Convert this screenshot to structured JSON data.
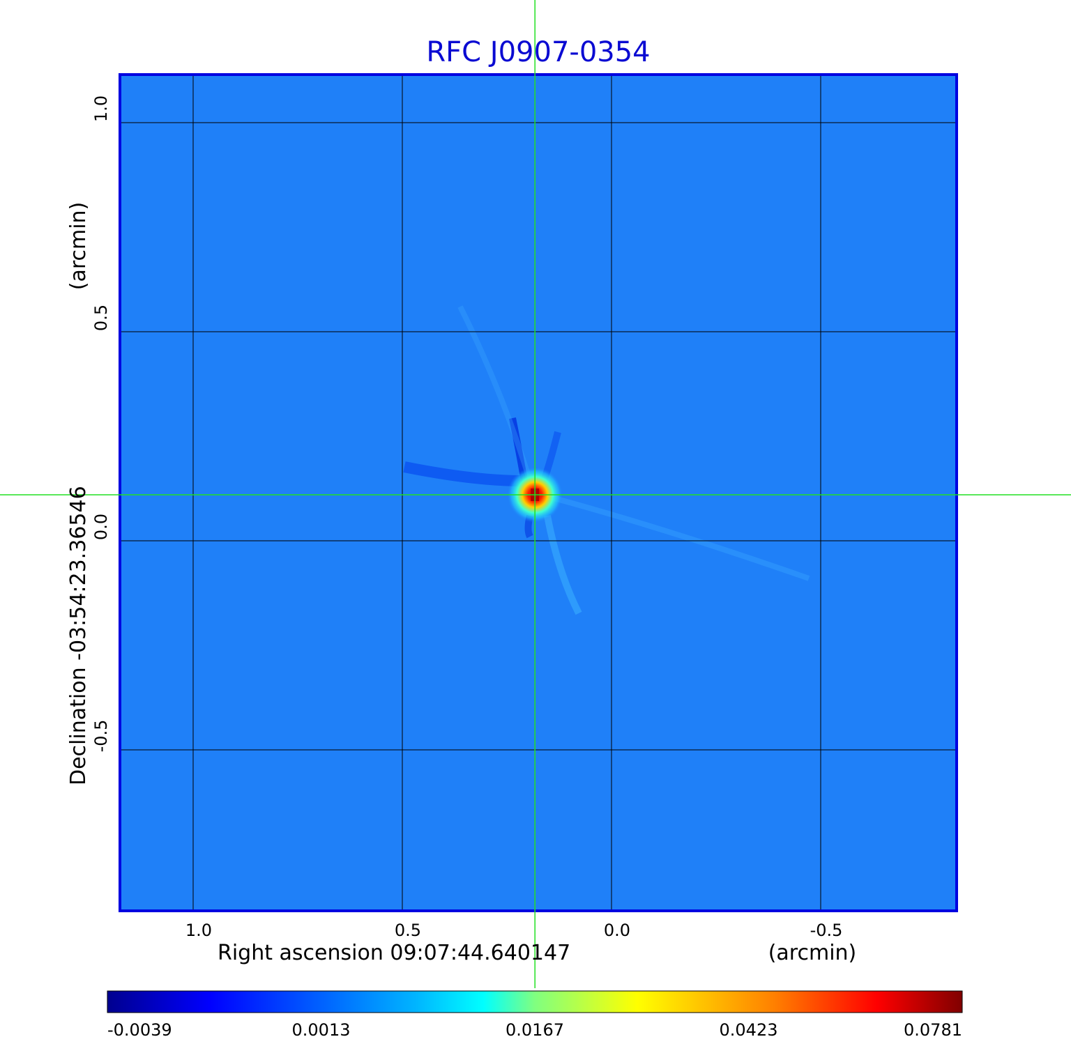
{
  "chart_data": {
    "type": "heatmap",
    "title": "RFC J0907-0354",
    "xlabel": "Right ascension  09:07:44.640147",
    "xlabel_unit": "(arcmin)",
    "ylabel": "Declination  -03:54:23.36546",
    "ylabel_unit": "(arcmin)",
    "x_ticks": [
      {
        "value": 1.0,
        "label": "1.0"
      },
      {
        "value": 0.5,
        "label": "0.5"
      },
      {
        "value": 0.0,
        "label": "0.0"
      },
      {
        "value": -0.5,
        "label": "-0.5"
      }
    ],
    "y_ticks": [
      {
        "value": 1.0,
        "label": "1.0"
      },
      {
        "value": 0.5,
        "label": "0.5"
      },
      {
        "value": 0.0,
        "label": "0.0"
      },
      {
        "value": -0.5,
        "label": "-0.5"
      }
    ],
    "xlim": [
      1.175,
      -0.825
    ],
    "ylim": [
      -0.885,
      1.115
    ],
    "grid": true,
    "crosshair": {
      "x": 0.183,
      "y": 0.11
    },
    "peak": {
      "x": 0.183,
      "y": 0.11,
      "value": 0.0781
    },
    "colorbar": {
      "tick_labels": [
        "-0.0039",
        "0.0013",
        "0.0167",
        "0.0423",
        "0.0781"
      ],
      "min": -0.0039,
      "max": 0.0781
    },
    "colors": {
      "title": "#0a0ad2",
      "frame": "#0000e0",
      "crosshair": "#22e022",
      "grid": "#000000",
      "background": "#1f80f8"
    }
  }
}
